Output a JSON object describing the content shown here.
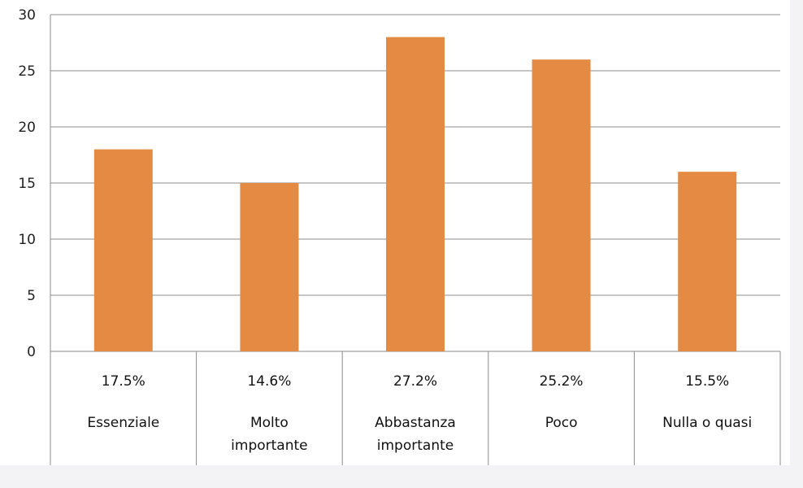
{
  "chart_data": {
    "type": "bar",
    "categories": [
      [
        "Essenziale"
      ],
      [
        "Molto",
        "importante"
      ],
      [
        "Abbastanza",
        "importante"
      ],
      [
        "Poco"
      ],
      [
        "Nulla o quasi"
      ]
    ],
    "values": [
      18,
      15,
      28,
      26,
      16
    ],
    "data_labels": [
      "17.5%",
      "14.6%",
      "27.2%",
      "25.2%",
      "15.5%"
    ],
    "ylim": [
      0,
      30
    ],
    "y_ticks": [
      0,
      5,
      10,
      15,
      20,
      25,
      30
    ],
    "grid": true,
    "legend": "none",
    "bar_color": "#e58a42",
    "grid_color": "#8c8c8c"
  }
}
